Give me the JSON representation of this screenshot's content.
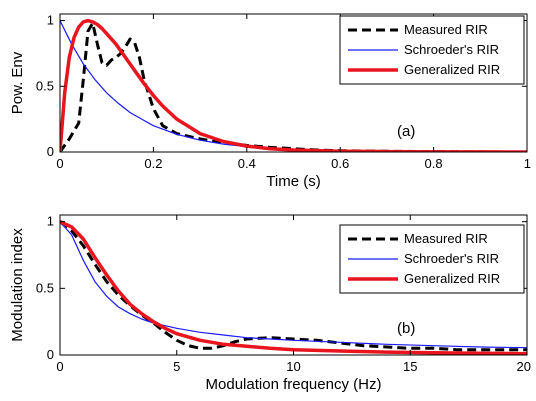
{
  "chart_data": [
    {
      "type": "line",
      "panel_label": "(a)",
      "xlabel": "Time (s)",
      "ylabel": "Pow. Env",
      "xlim": [
        0,
        1
      ],
      "ylim": [
        0,
        1.05
      ],
      "xticks": [
        0,
        0.2,
        0.4,
        0.6,
        0.8,
        1
      ],
      "xtick_labels": [
        "0",
        "0.2",
        "0.4",
        "0.6",
        "0.8",
        "1"
      ],
      "yticks": [
        0,
        0.5,
        1
      ],
      "ytick_labels": [
        "0",
        "0.5",
        "1"
      ],
      "legend_position": "top-right",
      "series": [
        {
          "name": "Measured RIR",
          "color": "#000000",
          "style": "dashed",
          "x": [
            0,
            0.02,
            0.04,
            0.05,
            0.06,
            0.07,
            0.08,
            0.09,
            0.1,
            0.11,
            0.12,
            0.13,
            0.14,
            0.15,
            0.16,
            0.17,
            0.18,
            0.2,
            0.22,
            0.25,
            0.3,
            0.35,
            0.4,
            0.45,
            0.5,
            0.55,
            0.6,
            0.7,
            0.8,
            0.9,
            1.0
          ],
          "y": [
            0,
            0.1,
            0.22,
            0.55,
            0.92,
            0.98,
            0.82,
            0.68,
            0.66,
            0.7,
            0.72,
            0.75,
            0.8,
            0.86,
            0.83,
            0.72,
            0.55,
            0.33,
            0.2,
            0.14,
            0.1,
            0.07,
            0.05,
            0.035,
            0.025,
            0.015,
            0.01,
            0.005,
            0.003,
            0.001,
            0
          ]
        },
        {
          "name": "Schroeder's RIR",
          "color": "#1a1aff",
          "style": "solid",
          "x": [
            0,
            0.025,
            0.05,
            0.075,
            0.1,
            0.125,
            0.15,
            0.175,
            0.2,
            0.25,
            0.3,
            0.35,
            0.4,
            0.45,
            0.5,
            0.6,
            0.7,
            0.8,
            0.9,
            1.0
          ],
          "y": [
            1,
            0.82,
            0.67,
            0.55,
            0.45,
            0.37,
            0.3,
            0.25,
            0.2,
            0.135,
            0.09,
            0.06,
            0.04,
            0.027,
            0.018,
            0.008,
            0.004,
            0.002,
            0.001,
            0
          ]
        },
        {
          "name": "Generalized RIR",
          "color": "#e8141e",
          "style": "solid",
          "x": [
            0,
            0.01,
            0.02,
            0.03,
            0.04,
            0.05,
            0.06,
            0.07,
            0.08,
            0.09,
            0.1,
            0.12,
            0.14,
            0.16,
            0.18,
            0.2,
            0.22,
            0.25,
            0.3,
            0.35,
            0.4,
            0.45,
            0.5,
            0.6,
            0.7,
            0.8,
            0.9,
            1.0
          ],
          "y": [
            0,
            0.45,
            0.72,
            0.87,
            0.95,
            0.99,
            1.0,
            0.99,
            0.97,
            0.94,
            0.9,
            0.82,
            0.72,
            0.62,
            0.52,
            0.43,
            0.35,
            0.25,
            0.14,
            0.08,
            0.045,
            0.025,
            0.015,
            0.006,
            0.003,
            0.001,
            0.0005,
            0
          ]
        }
      ]
    },
    {
      "type": "line",
      "panel_label": "(b)",
      "xlabel": "Modulation frequency (Hz)",
      "ylabel": "Modulation index",
      "xlim": [
        0,
        20
      ],
      "ylim": [
        0,
        1.05
      ],
      "xticks": [
        0,
        5,
        10,
        15,
        20
      ],
      "xtick_labels": [
        "0",
        "5",
        "10",
        "15",
        "20"
      ],
      "yticks": [
        0,
        0.5,
        1
      ],
      "ytick_labels": [
        "0",
        "0.5",
        "1"
      ],
      "legend_position": "top-right",
      "series": [
        {
          "name": "Measured RIR",
          "color": "#000000",
          "style": "dashed",
          "x": [
            0,
            0.5,
            1,
            1.5,
            2,
            2.5,
            3,
            3.5,
            4,
            4.5,
            5,
            5.5,
            6,
            6.5,
            7,
            7.5,
            8,
            9,
            10,
            11,
            12,
            13,
            14,
            15,
            16,
            17,
            18,
            19,
            20
          ],
          "y": [
            1,
            0.93,
            0.82,
            0.68,
            0.55,
            0.45,
            0.37,
            0.3,
            0.24,
            0.17,
            0.11,
            0.07,
            0.05,
            0.05,
            0.07,
            0.1,
            0.12,
            0.13,
            0.12,
            0.11,
            0.09,
            0.07,
            0.06,
            0.05,
            0.05,
            0.04,
            0.04,
            0.04,
            0.04
          ]
        },
        {
          "name": "Schroeder's RIR",
          "color": "#1a1aff",
          "style": "solid",
          "x": [
            0,
            0.5,
            1,
            1.5,
            2,
            2.5,
            3,
            3.5,
            4,
            4.5,
            5,
            6,
            7,
            8,
            9,
            10,
            12,
            14,
            16,
            18,
            20
          ],
          "y": [
            1,
            0.9,
            0.71,
            0.55,
            0.44,
            0.36,
            0.31,
            0.27,
            0.24,
            0.22,
            0.2,
            0.17,
            0.15,
            0.13,
            0.12,
            0.11,
            0.095,
            0.08,
            0.07,
            0.06,
            0.055
          ]
        },
        {
          "name": "Generalized RIR",
          "color": "#e8141e",
          "style": "solid",
          "x": [
            0,
            0.5,
            1,
            1.5,
            2,
            2.5,
            3,
            3.5,
            4,
            4.5,
            5,
            6,
            7,
            8,
            9,
            10,
            12,
            14,
            16,
            18,
            20
          ],
          "y": [
            1,
            0.96,
            0.87,
            0.73,
            0.6,
            0.48,
            0.38,
            0.31,
            0.25,
            0.2,
            0.16,
            0.11,
            0.08,
            0.065,
            0.05,
            0.04,
            0.03,
            0.022,
            0.017,
            0.013,
            0.01
          ]
        }
      ]
    }
  ]
}
